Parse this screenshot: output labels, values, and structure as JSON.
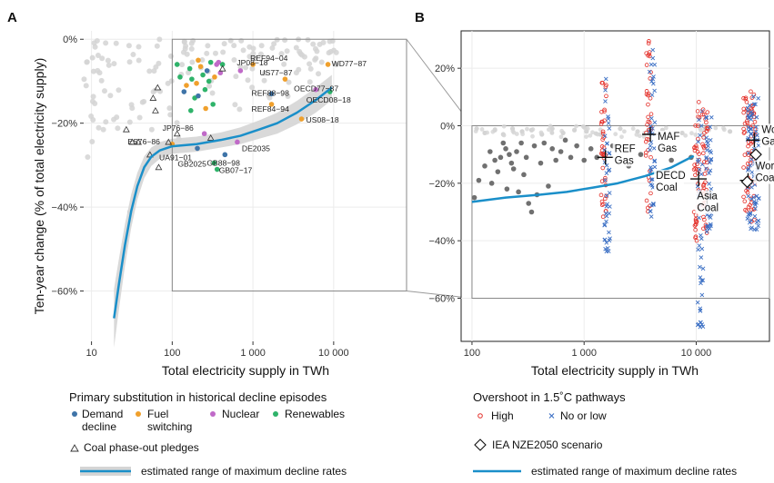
{
  "figure": {
    "panel_a_label": "A",
    "panel_b_label": "B",
    "colors": {
      "demand": "#3f74a8",
      "fuel": "#f0a02c",
      "nuclear": "#c06ac8",
      "renewables": "#2fb36a",
      "curve": "#1a8fc9",
      "band": "#d5d5d5",
      "grey_point": "#d4d4d4",
      "dark_point": "#707070",
      "high": "#e4302a",
      "low": "#3b6fc4"
    }
  },
  "chart_data": [
    {
      "panel": "A",
      "type": "scatter",
      "xlabel": "Total electricity supply in TWh",
      "ylabel": "Ten-year change (% of total electricity supply)",
      "x_scale": "log",
      "xlim": [
        8,
        80000
      ],
      "ylim": [
        -72,
        2
      ],
      "x_ticks": [
        {
          "v": 10,
          "label": "10"
        },
        {
          "v": 100,
          "label": "100"
        },
        {
          "v": 1000,
          "label": "1 000"
        },
        {
          "v": 10000,
          "label": "10 000"
        }
      ],
      "y_ticks": [
        {
          "v": 0,
          "label": "0%"
        },
        {
          "v": -20,
          "label": "−20%"
        },
        {
          "v": -40,
          "label": "−40%"
        },
        {
          "v": -60,
          "label": "−60%"
        }
      ],
      "grid": true,
      "zoom_box": {
        "x": [
          100,
          80000
        ],
        "y": [
          -60,
          0
        ]
      },
      "labeled_points": [
        {
          "label": "JP08−18",
          "x": 700,
          "y": -7.5,
          "type": "nuclear"
        },
        {
          "label": "REF94−04",
          "x": 1000,
          "y": -6,
          "type": "fuel"
        },
        {
          "label": "WD77−87",
          "x": 8500,
          "y": -6,
          "type": "fuel"
        },
        {
          "label": "US77−87",
          "x": 2500,
          "y": -9.5,
          "type": "fuel"
        },
        {
          "label": "OECD77−87",
          "x": 6000,
          "y": -12,
          "type": "nuclear"
        },
        {
          "label": "REF88−98",
          "x": 1700,
          "y": -13,
          "type": "demand"
        },
        {
          "label": "OECD08−18",
          "x": 9000,
          "y": -12.5,
          "type": "renewables"
        },
        {
          "label": "REF84−94",
          "x": 1700,
          "y": -15.5,
          "type": "fuel"
        },
        {
          "label": "US08−18",
          "x": 4000,
          "y": -19,
          "type": "fuel"
        },
        {
          "label": "JP76−86",
          "x": 250,
          "y": -22.5,
          "type": "nuclear"
        },
        {
          "label": "DE2035",
          "x": 640,
          "y": -24.5,
          "type": "nuclear"
        },
        {
          "label": "ES76−86",
          "x": 100,
          "y": -25,
          "type": "fuel"
        },
        {
          "label": "UA91−01",
          "x": 205,
          "y": -26,
          "type": "demand"
        },
        {
          "label": "GB88−98",
          "x": 450,
          "y": -27.5,
          "type": "demand"
        },
        {
          "label": "GB2025",
          "x": 330,
          "y": -29.5,
          "type": "renewables"
        },
        {
          "label": "GB07−17",
          "x": 360,
          "y": -31,
          "type": "renewables"
        }
      ],
      "unlabeled_points": [
        {
          "x": 115,
          "y": -6,
          "type": "renewables"
        },
        {
          "x": 125,
          "y": -9,
          "type": "renewables"
        },
        {
          "x": 140,
          "y": -12.5,
          "type": "demand"
        },
        {
          "x": 150,
          "y": -11,
          "type": "fuel"
        },
        {
          "x": 165,
          "y": -7,
          "type": "renewables"
        },
        {
          "x": 175,
          "y": -9.5,
          "type": "renewables"
        },
        {
          "x": 190,
          "y": -14,
          "type": "renewables"
        },
        {
          "x": 200,
          "y": -10.5,
          "type": "fuel"
        },
        {
          "x": 210,
          "y": -5,
          "type": "fuel"
        },
        {
          "x": 225,
          "y": -6.5,
          "type": "fuel"
        },
        {
          "x": 240,
          "y": -8.5,
          "type": "renewables"
        },
        {
          "x": 255,
          "y": -12,
          "type": "renewables"
        },
        {
          "x": 270,
          "y": -7.5,
          "type": "demand"
        },
        {
          "x": 285,
          "y": -10,
          "type": "renewables"
        },
        {
          "x": 300,
          "y": -5.5,
          "type": "renewables"
        },
        {
          "x": 320,
          "y": -15.5,
          "type": "renewables"
        },
        {
          "x": 335,
          "y": -9,
          "type": "fuel"
        },
        {
          "x": 355,
          "y": -6,
          "type": "nuclear"
        },
        {
          "x": 375,
          "y": -5.5,
          "type": "nuclear"
        },
        {
          "x": 395,
          "y": -8,
          "type": "nuclear"
        },
        {
          "x": 420,
          "y": -6,
          "type": "renewables"
        },
        {
          "x": 170,
          "y": -17,
          "type": "renewables"
        },
        {
          "x": 260,
          "y": -16.5,
          "type": "fuel"
        },
        {
          "x": 210,
          "y": -13.5,
          "type": "demand"
        }
      ],
      "pledges": [
        {
          "x": 27,
          "y": -21.5
        },
        {
          "x": 32,
          "y": -24.5
        },
        {
          "x": 38,
          "y": -24.5
        },
        {
          "x": 58,
          "y": -14
        },
        {
          "x": 62,
          "y": -17
        },
        {
          "x": 66,
          "y": -11.5
        },
        {
          "x": 68,
          "y": -30.5
        },
        {
          "x": 115,
          "y": -22.5
        },
        {
          "x": 300,
          "y": -23.5
        },
        {
          "x": 420,
          "y": -7
        },
        {
          "x": 90,
          "y": -24.5
        },
        {
          "x": 53,
          "y": -27.5
        }
      ],
      "curve": [
        {
          "x": 19,
          "y": -66.5
        },
        {
          "x": 22,
          "y": -58
        },
        {
          "x": 26,
          "y": -49
        },
        {
          "x": 31,
          "y": -41
        },
        {
          "x": 37,
          "y": -35
        },
        {
          "x": 45,
          "y": -30.5
        },
        {
          "x": 55,
          "y": -28
        },
        {
          "x": 70,
          "y": -26.5
        },
        {
          "x": 100,
          "y": -25.5
        },
        {
          "x": 200,
          "y": -25
        },
        {
          "x": 400,
          "y": -24
        },
        {
          "x": 700,
          "y": -23
        },
        {
          "x": 1200,
          "y": -21.5
        },
        {
          "x": 2000,
          "y": -20
        },
        {
          "x": 3500,
          "y": -17.5
        },
        {
          "x": 6000,
          "y": -14.5
        },
        {
          "x": 9500,
          "y": -11.5
        }
      ],
      "band_halfwidth": [
        7,
        6,
        5,
        4,
        3.2,
        2.6,
        2.2,
        2,
        1.8,
        1.8,
        1.8,
        2,
        2.2,
        2.5,
        2.8,
        3,
        3
      ]
    },
    {
      "panel": "B",
      "type": "scatter",
      "xlabel": "Total electricity supply in TWh",
      "x_scale": "log",
      "xlim": [
        80,
        45000
      ],
      "ylim": [
        -75,
        33
      ],
      "x_ticks": [
        {
          "v": 100,
          "label": "100"
        },
        {
          "v": 1000,
          "label": "1 000"
        },
        {
          "v": 10000,
          "label": "10 000"
        }
      ],
      "y_ticks": [
        {
          "v": 20,
          "label": "20%"
        },
        {
          "v": 0,
          "label": "0%"
        },
        {
          "v": -20,
          "label": "−20%"
        },
        {
          "v": -40,
          "label": "−40%"
        },
        {
          "v": -60,
          "label": "−60%"
        }
      ],
      "grid": true,
      "zoom_box": {
        "x": [
          100,
          45000
        ],
        "y": [
          -60,
          0
        ]
      },
      "historical_points": [
        {
          "x": 105,
          "y": -25
        },
        {
          "x": 115,
          "y": -19
        },
        {
          "x": 130,
          "y": -14
        },
        {
          "x": 145,
          "y": -9
        },
        {
          "x": 150,
          "y": -20
        },
        {
          "x": 160,
          "y": -12
        },
        {
          "x": 170,
          "y": -16
        },
        {
          "x": 180,
          "y": -11
        },
        {
          "x": 190,
          "y": -6
        },
        {
          "x": 200,
          "y": -8
        },
        {
          "x": 205,
          "y": -22
        },
        {
          "x": 215,
          "y": -10
        },
        {
          "x": 225,
          "y": -13
        },
        {
          "x": 235,
          "y": -15
        },
        {
          "x": 250,
          "y": -9
        },
        {
          "x": 260,
          "y": -23
        },
        {
          "x": 275,
          "y": -6
        },
        {
          "x": 290,
          "y": -17
        },
        {
          "x": 305,
          "y": -11
        },
        {
          "x": 320,
          "y": -27
        },
        {
          "x": 340,
          "y": -30
        },
        {
          "x": 360,
          "y": -7
        },
        {
          "x": 380,
          "y": -24
        },
        {
          "x": 410,
          "y": -13
        },
        {
          "x": 440,
          "y": -6
        },
        {
          "x": 480,
          "y": -21
        },
        {
          "x": 520,
          "y": -8
        },
        {
          "x": 560,
          "y": -12
        },
        {
          "x": 620,
          "y": -9
        },
        {
          "x": 680,
          "y": -5
        },
        {
          "x": 760,
          "y": -11
        },
        {
          "x": 860,
          "y": -7
        },
        {
          "x": 1000,
          "y": -12
        },
        {
          "x": 1150,
          "y": -8
        },
        {
          "x": 1300,
          "y": -11
        },
        {
          "x": 1800,
          "y": -7
        },
        {
          "x": 2500,
          "y": -14
        },
        {
          "x": 3200,
          "y": -10
        },
        {
          "x": 6000,
          "y": -12
        },
        {
          "x": 9000,
          "y": -11
        }
      ],
      "grey_points_near_zero": [
        {
          "x": 110,
          "y": -1
        },
        {
          "x": 130,
          "y": -2.5
        },
        {
          "x": 160,
          "y": -1.5
        },
        {
          "x": 190,
          "y": -3
        },
        {
          "x": 230,
          "y": -1
        },
        {
          "x": 280,
          "y": -2
        },
        {
          "x": 340,
          "y": -1.5
        },
        {
          "x": 420,
          "y": -3
        },
        {
          "x": 520,
          "y": -1
        },
        {
          "x": 650,
          "y": -2.5
        },
        {
          "x": 820,
          "y": -1.5
        },
        {
          "x": 1050,
          "y": -2
        },
        {
          "x": 1400,
          "y": -3
        },
        {
          "x": 2100,
          "y": -1
        },
        {
          "x": 3000,
          "y": -2
        },
        {
          "x": 5000,
          "y": -1.5
        },
        {
          "x": 7500,
          "y": -2.5
        },
        {
          "x": 12000,
          "y": -1
        },
        {
          "x": 20000,
          "y": -2
        }
      ],
      "pathway_columns": [
        {
          "label": "REF\nGas",
          "x": 1550,
          "high_range": [
            -35,
            17
          ],
          "low_range": [
            -44,
            24
          ],
          "marker_y": -11
        },
        {
          "label": "MAF\nGas",
          "x": 3900,
          "high_range": [
            -33,
            31
          ],
          "low_range": [
            -34,
            29
          ],
          "marker_y": -3
        },
        {
          "label": "DECD\nCoal",
          "x": 10500,
          "high_range": [
            -40,
            10
          ],
          "low_range": [
            -70,
            8
          ],
          "marker_y": -18.5
        },
        {
          "label": "Asia\nCoal",
          "x": 12500,
          "high_range": [
            -40,
            6
          ],
          "low_range": [
            -39,
            4
          ],
          "marker_y": -25
        },
        {
          "label": "World\nGas",
          "x": 33000,
          "high_range": [
            -35,
            13
          ],
          "low_range": [
            -37,
            12
          ],
          "marker_y": -5
        },
        {
          "label": "World\nCoal",
          "x": 29000,
          "high_range": [
            -30,
            10
          ],
          "low_range": [
            -36,
            8
          ],
          "marker_y": -19
        }
      ],
      "nze_points": [
        {
          "x": 34000,
          "y": -10
        },
        {
          "x": 28500,
          "y": -19.5
        }
      ],
      "curve": [
        {
          "x": 100,
          "y": -26.5
        },
        {
          "x": 200,
          "y": -25
        },
        {
          "x": 400,
          "y": -24
        },
        {
          "x": 700,
          "y": -23
        },
        {
          "x": 1200,
          "y": -21.5
        },
        {
          "x": 2000,
          "y": -20
        },
        {
          "x": 3500,
          "y": -17.5
        },
        {
          "x": 6000,
          "y": -14.5
        },
        {
          "x": 9500,
          "y": -10.5
        }
      ]
    }
  ],
  "legend_a": {
    "title": "Primary substitution in historical decline episodes",
    "items": [
      {
        "label": "Demand\ndecline",
        "key": "demand"
      },
      {
        "label": "Fuel\nswitching",
        "key": "fuel"
      },
      {
        "label": "Nuclear",
        "key": "nuclear"
      },
      {
        "label": "Renewables",
        "key": "renewables"
      }
    ],
    "pledges_label": "Coal phase-out pledges",
    "band_label": "estimated range of maximum decline rates"
  },
  "legend_b": {
    "title": "Overshoot in 1.5˚C pathways",
    "high_label": "High",
    "low_label": "No or low",
    "nze_label": "IEA NZE2050 scenario",
    "curve_label": "estimated range of maximum decline rates"
  }
}
